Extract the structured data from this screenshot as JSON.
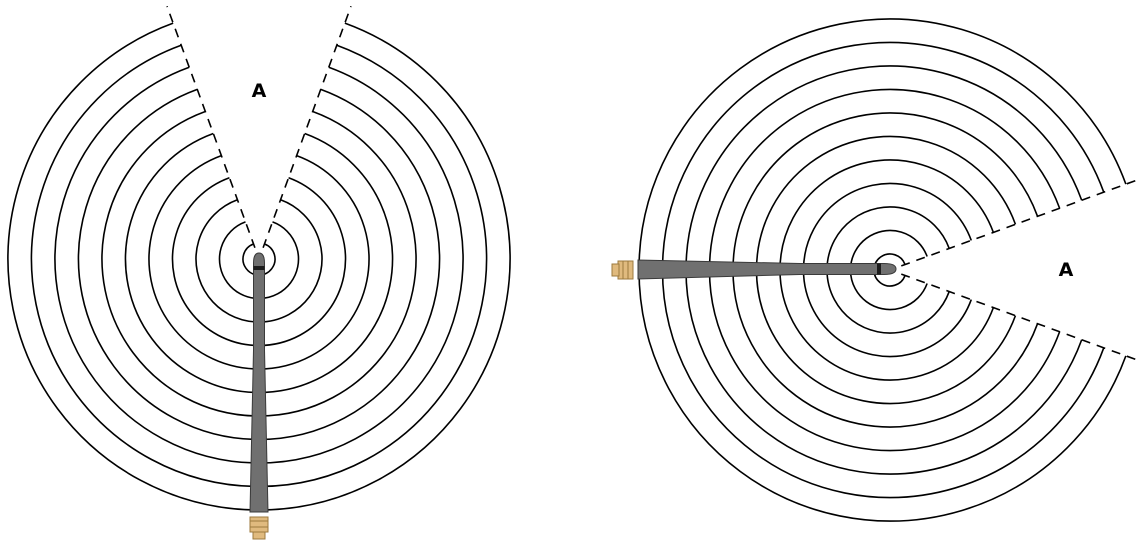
{
  "figures": [
    {
      "id": "vertical",
      "orientation": "up",
      "zone_label": "A"
    },
    {
      "id": "horizontal",
      "orientation": "right",
      "zone_label": "A"
    }
  ],
  "colors": {
    "background": "#ffffff",
    "wave_line": "#000000",
    "antenna_body": "#707070",
    "antenna_outline": "#3a3a3a",
    "antenna_band": "#1c1c1c",
    "connector_fill": "#e0ba7e",
    "connector_outline": "#9c7a3e"
  },
  "wave_ring_count": 11
}
